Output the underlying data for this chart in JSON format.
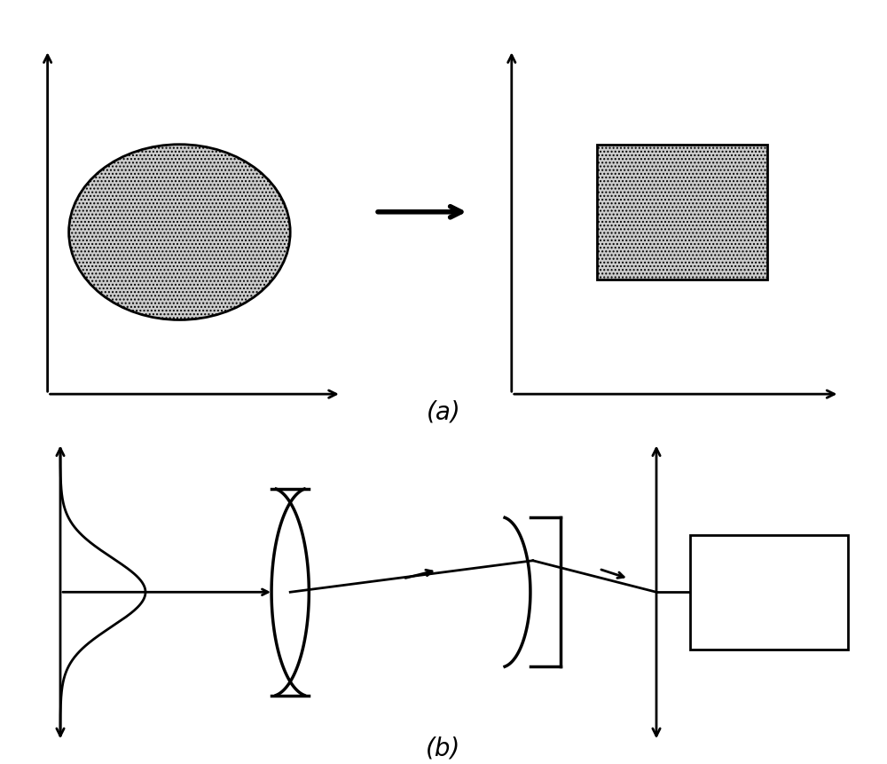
{
  "bg_color": "#ffffff",
  "line_color": "#000000",
  "label_a": "(a)",
  "label_b": "(b)",
  "label_fontsize": 20
}
